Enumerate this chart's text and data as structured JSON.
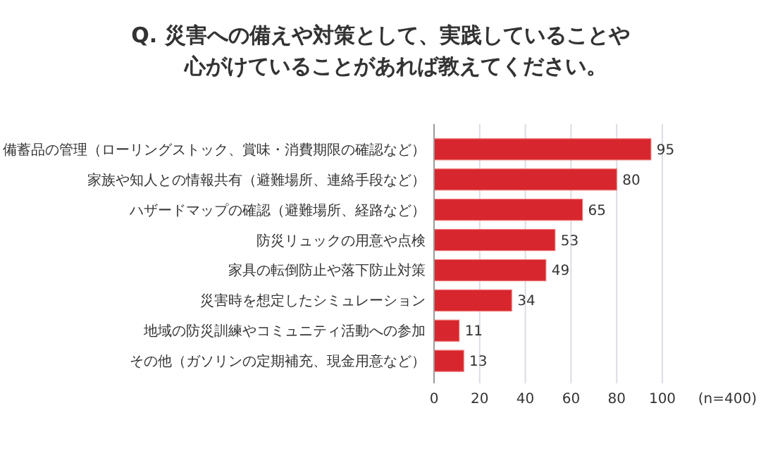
{
  "chart_data": {
    "type": "bar",
    "orientation": "horizontal",
    "title": "Q. 災害への備えや対策として、実践していることや心がけていることがあれば教えてください。",
    "categories": [
      "備蓄品の管理（ローリングストック、賞味・消費期限の確認など）",
      "家族や知人との情報共有（避難場所、連絡手段など）",
      "ハザードマップの確認（避難場所、経路など）",
      "防災リュックの用意や点検",
      "家具の転倒防止や落下防止対策",
      "災害時を想定したシミュレーション",
      "地域の防災訓練やコミュニティ活動への参加",
      "その他（ガソリンの定期補充、現金用意など）"
    ],
    "values": [
      95,
      80,
      65,
      53,
      49,
      34,
      11,
      13
    ],
    "color": "#d7262e",
    "xlim": [
      0,
      100
    ],
    "xticks": [
      0,
      20,
      40,
      60,
      80,
      100
    ],
    "grid": "x",
    "data_labels": true,
    "annotations": [
      "(n=400)"
    ]
  }
}
